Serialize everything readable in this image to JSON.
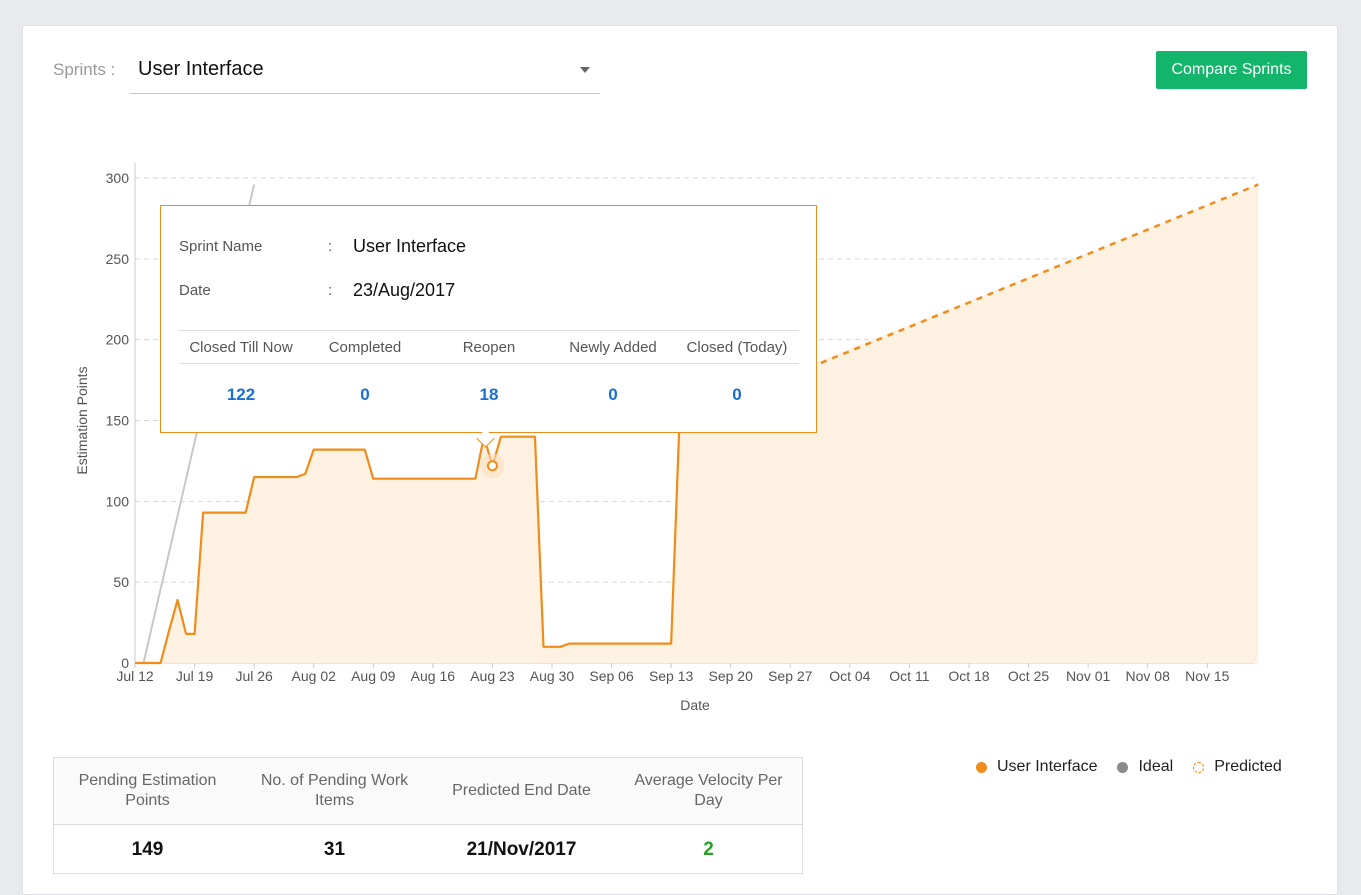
{
  "header": {
    "sprint_label": "Sprints :",
    "sprint_value": "User Interface",
    "compare_button": "Compare Sprints"
  },
  "colors": {
    "series": "#f08c1a",
    "area": "#fdf1e2",
    "ideal": "#c8c8c8",
    "button": "#13b56b",
    "link_value": "#1a6fd1",
    "velocity": "#2a9d2a"
  },
  "tooltip": {
    "sprint_name_label": "Sprint Name",
    "sprint_name_value": "User Interface",
    "date_label": "Date",
    "date_value": "23/Aug/2017",
    "separator": ":",
    "columns": [
      "Closed Till Now",
      "Completed",
      "Reopen",
      "Newly Added",
      "Closed (Today)"
    ],
    "values": [
      "122",
      "0",
      "18",
      "0",
      "0"
    ]
  },
  "stats": {
    "headers": [
      "Pending Estimation Points",
      "No. of Pending Work Items",
      "Predicted End Date",
      "Average Velocity Per Day"
    ],
    "values": [
      "149",
      "31",
      "21/Nov/2017",
      "2"
    ]
  },
  "legend": {
    "items": [
      {
        "label": "User Interface",
        "icon": "orange-dot-icon"
      },
      {
        "label": "Ideal",
        "icon": "grey-dot-icon"
      },
      {
        "label": "Predicted",
        "icon": "dashed-circle-icon"
      }
    ]
  },
  "chart_data": {
    "type": "line",
    "xlabel": "Date",
    "ylabel": "Estimation Points",
    "ylim": [
      0,
      300
    ],
    "yticks": [
      0,
      50,
      100,
      150,
      200,
      250,
      300
    ],
    "xticks": [
      "Jul 12",
      "Jul 19",
      "Jul 26",
      "Aug 02",
      "Aug 09",
      "Aug 16",
      "Aug 23",
      "Aug 30",
      "Sep 06",
      "Sep 13",
      "Sep 20",
      "Sep 27",
      "Oct 04",
      "Oct 11",
      "Oct 18",
      "Oct 25",
      "Nov 01",
      "Nov 08",
      "Nov 15"
    ],
    "grid": true,
    "legend_position": "bottom-right",
    "series": [
      {
        "name": "User Interface",
        "style": "solid",
        "points": [
          [
            "2017-07-12",
            0
          ],
          [
            "2017-07-15",
            0
          ],
          [
            "2017-07-16",
            20
          ],
          [
            "2017-07-17",
            39
          ],
          [
            "2017-07-18",
            18
          ],
          [
            "2017-07-19",
            18
          ],
          [
            "2017-07-20",
            93
          ],
          [
            "2017-07-25",
            93
          ],
          [
            "2017-07-26",
            115
          ],
          [
            "2017-07-31",
            115
          ],
          [
            "2017-08-01",
            117
          ],
          [
            "2017-08-02",
            132
          ],
          [
            "2017-08-08",
            132
          ],
          [
            "2017-08-09",
            114
          ],
          [
            "2017-08-21",
            114
          ],
          [
            "2017-08-22",
            140
          ],
          [
            "2017-08-23",
            122
          ],
          [
            "2017-08-24",
            140
          ],
          [
            "2017-08-28",
            140
          ],
          [
            "2017-08-29",
            10
          ],
          [
            "2017-08-31",
            10
          ],
          [
            "2017-09-01",
            12
          ],
          [
            "2017-09-13",
            12
          ],
          [
            "2017-09-14",
            152
          ]
        ]
      },
      {
        "name": "Predicted",
        "style": "dashed",
        "points": [
          [
            "2017-09-28",
            180
          ],
          [
            "2017-11-21",
            296
          ]
        ]
      },
      {
        "name": "Ideal",
        "style": "solid",
        "points": [
          [
            "2017-07-13",
            0
          ],
          [
            "2017-07-26",
            296
          ]
        ]
      }
    ],
    "highlight": {
      "date": "2017-08-23",
      "value": 122
    }
  }
}
